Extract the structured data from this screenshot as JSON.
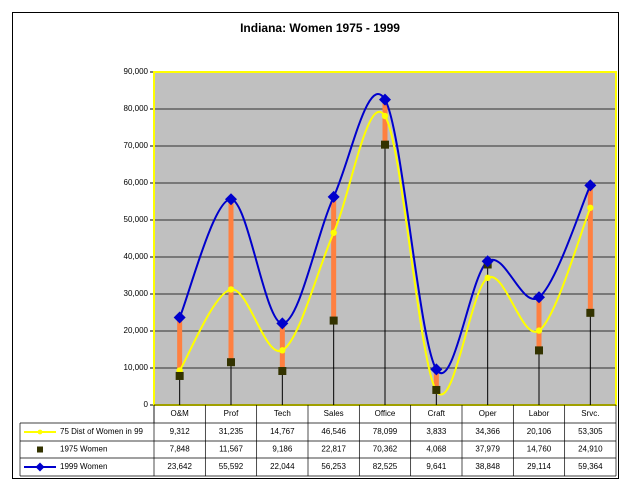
{
  "chart_data": {
    "type": "line",
    "title": "Indiana: Women 1975 - 1999",
    "categories": [
      "O&M",
      "Prof",
      "Tech",
      "Sales",
      "Office",
      "Craft",
      "Oper",
      "Labor",
      "Srvc."
    ],
    "series": [
      {
        "name": "75 Dist of Women in 99",
        "color": "#ffff00",
        "marker": "circle",
        "smooth": true,
        "values": [
          9312,
          31235,
          14767,
          46546,
          78099,
          3833,
          34366,
          20106,
          53305
        ],
        "value_labels": [
          "9,312",
          "31,235",
          "14,767",
          "46,546",
          "78,099",
          "3,833",
          "34,366",
          "20,106",
          "53,305"
        ]
      },
      {
        "name": "1975 Women",
        "color": "#333300",
        "marker": "square",
        "smooth": false,
        "values": [
          7848,
          11567,
          9186,
          22817,
          70362,
          4068,
          37979,
          14760,
          24910
        ],
        "value_labels": [
          "7,848",
          "11,567",
          "9,186",
          "22,817",
          "70,362",
          "4,068",
          "37,979",
          "14,760",
          "24,910"
        ]
      },
      {
        "name": "1999 Women",
        "color": "#0000cc",
        "marker": "diamond",
        "smooth": true,
        "values": [
          23642,
          55592,
          22044,
          56253,
          82525,
          9641,
          38848,
          29114,
          59364
        ],
        "value_labels": [
          "23,642",
          "55,592",
          "22,044",
          "56,253",
          "82,525",
          "9,641",
          "38,848",
          "29,114",
          "59,364"
        ]
      }
    ],
    "ylim": [
      0,
      90000
    ],
    "yticks": [
      0,
      {
        "value": 10000,
        "label": "10,000"
      },
      {
        "value": 20000,
        "label": "20,000"
      },
      {
        "value": 30000,
        "label": "30,000"
      },
      {
        "value": 40000,
        "label": "40,000"
      },
      {
        "value": 50000,
        "label": "50,000"
      },
      {
        "value": 60000,
        "label": "60,000"
      },
      {
        "value": 70000,
        "label": "70,000"
      },
      {
        "value": 80000,
        "label": "80,000"
      },
      {
        "value": 90000,
        "label": "90,000"
      }
    ],
    "grid": true,
    "plot_background": "#c0c0c0",
    "plot_border": "#ffff00",
    "high_low_color": "#ff8040",
    "drop_lines": true,
    "data_table": true
  }
}
